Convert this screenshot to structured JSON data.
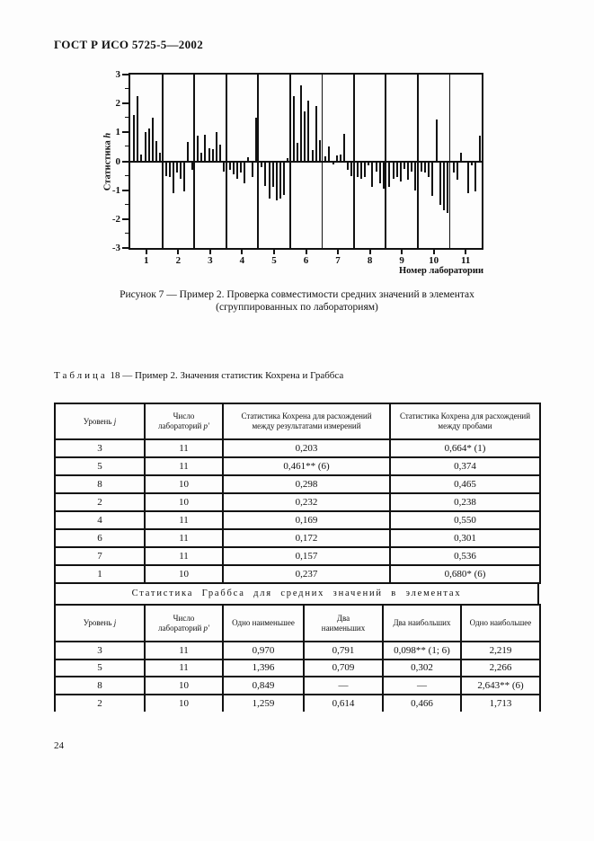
{
  "page": {
    "header": "ГОСТ Р ИСО 5725-5—2002",
    "page_number": "24"
  },
  "figure": {
    "caption_line1": "Рисунок 7 — Пример 2. Проверка совместимости средних значений в элементах",
    "caption_line2": "(сгруппированных по лабораториям)"
  },
  "chart_data": {
    "type": "bar",
    "title": "Рисунок 7 — Пример 2. Проверка совместимости средних значений в элементах (сгруппированных по лабораториям)",
    "ylabel_text": "Статистика",
    "ylabel_var": "h",
    "xlabel": "Номер лаборатории",
    "ylim": [
      -3,
      3
    ],
    "yticks": [
      3,
      2,
      1,
      0,
      -1,
      -2,
      -3
    ],
    "minor_ytick_step": 0.5,
    "grid": false,
    "legend": "none",
    "labs": [
      {
        "label": "1",
        "values": [
          1.6,
          2.25,
          0.25,
          1.0,
          1.15,
          1.5,
          0.7,
          0.3
        ]
      },
      {
        "label": "2",
        "values": [
          -0.5,
          -0.55,
          -1.1,
          -0.4,
          -0.6,
          -1.05,
          0.68,
          -0.3
        ]
      },
      {
        "label": "3",
        "values": [
          0.88,
          0.3,
          0.93,
          0.45,
          0.42,
          1.02,
          0.57,
          -0.35
        ]
      },
      {
        "label": "4",
        "values": [
          -0.3,
          -0.45,
          -0.62,
          -0.38,
          -0.75,
          0.15,
          -0.55,
          1.52
        ]
      },
      {
        "label": "5",
        "values": [
          -0.2,
          -0.85,
          -1.3,
          -0.9,
          -1.35,
          -1.3,
          -1.15,
          0.1
        ]
      },
      {
        "label": "6",
        "values": [
          2.25,
          0.65,
          2.62,
          1.72,
          2.1,
          0.4,
          1.9,
          0.72
        ]
      },
      {
        "label": "7",
        "values": [
          0.18,
          0.5,
          -0.12,
          0.2,
          0.25,
          0.95,
          -0.3,
          -0.5
        ]
      },
      {
        "label": "8",
        "values": [
          -0.55,
          -0.6,
          -0.55,
          -0.15,
          -0.9,
          -0.35,
          -0.75,
          -0.95
        ]
      },
      {
        "label": "9",
        "values": [
          -0.9,
          -0.6,
          -0.55,
          -0.7,
          -0.25,
          -0.65,
          -0.35,
          -1.0
        ]
      },
      {
        "label": "10",
        "values": [
          -0.35,
          -0.4,
          -0.55,
          -1.2,
          1.45,
          -1.5,
          -1.7,
          -1.8
        ]
      },
      {
        "label": "11",
        "values": [
          -0.4,
          -0.65,
          0.3,
          -0.05,
          -1.1,
          -0.15,
          -1.05,
          0.9
        ]
      }
    ],
    "thin_dividers_after": [
      6,
      10
    ]
  },
  "table18": {
    "caption_label": "Таблица",
    "caption_rest": " 18 — Пример 2. Значения статистик Кохрена и Граббса",
    "part1": {
      "headers": [
        {
          "text": "Уровень",
          "var": "j"
        },
        {
          "line1": "Число",
          "line2": "лабораторий",
          "var": "p′"
        },
        {
          "line1": "Статистика Кохрена для расхождений",
          "line2": "между результатами измерений"
        },
        {
          "line1": "Статистика Кохрена для расхождений",
          "line2": "между пробами"
        }
      ],
      "rows": [
        [
          "3",
          "11",
          "0,203",
          "0,664* (1)"
        ],
        [
          "5",
          "11",
          "0,461** (6)",
          "0,374"
        ],
        [
          "8",
          "10",
          "0,298",
          "0,465"
        ],
        [
          "2",
          "10",
          "0,232",
          "0,238"
        ],
        [
          "4",
          "11",
          "0,169",
          "0,550"
        ],
        [
          "6",
          "11",
          "0,172",
          "0,301"
        ],
        [
          "7",
          "11",
          "0,157",
          "0,536"
        ],
        [
          "1",
          "10",
          "0,237",
          "0,680* (6)"
        ]
      ]
    },
    "section_header": "Статистика Граббса для средних значений в элементах",
    "part2": {
      "headers": [
        {
          "text": "Уровень",
          "var": "j"
        },
        {
          "line1": "Число",
          "line2": "лабораторий",
          "var": "p′"
        },
        {
          "text": "Одно наименьшее"
        },
        {
          "line1": "Два",
          "line2": "наименьших"
        },
        {
          "text": "Два наибольших"
        },
        {
          "text": "Одно наибольшее"
        }
      ],
      "rows": [
        [
          "3",
          "11",
          "0,970",
          "0,791",
          "0,098** (1; 6)",
          "2,219"
        ],
        [
          "5",
          "11",
          "1,396",
          "0,709",
          "0,302",
          "2,266"
        ],
        [
          "8",
          "10",
          "0,849",
          "—",
          "—",
          "2,643** (6)"
        ],
        [
          "2",
          "10",
          "1,259",
          "0,614",
          "0,466",
          "1,713"
        ]
      ]
    }
  }
}
